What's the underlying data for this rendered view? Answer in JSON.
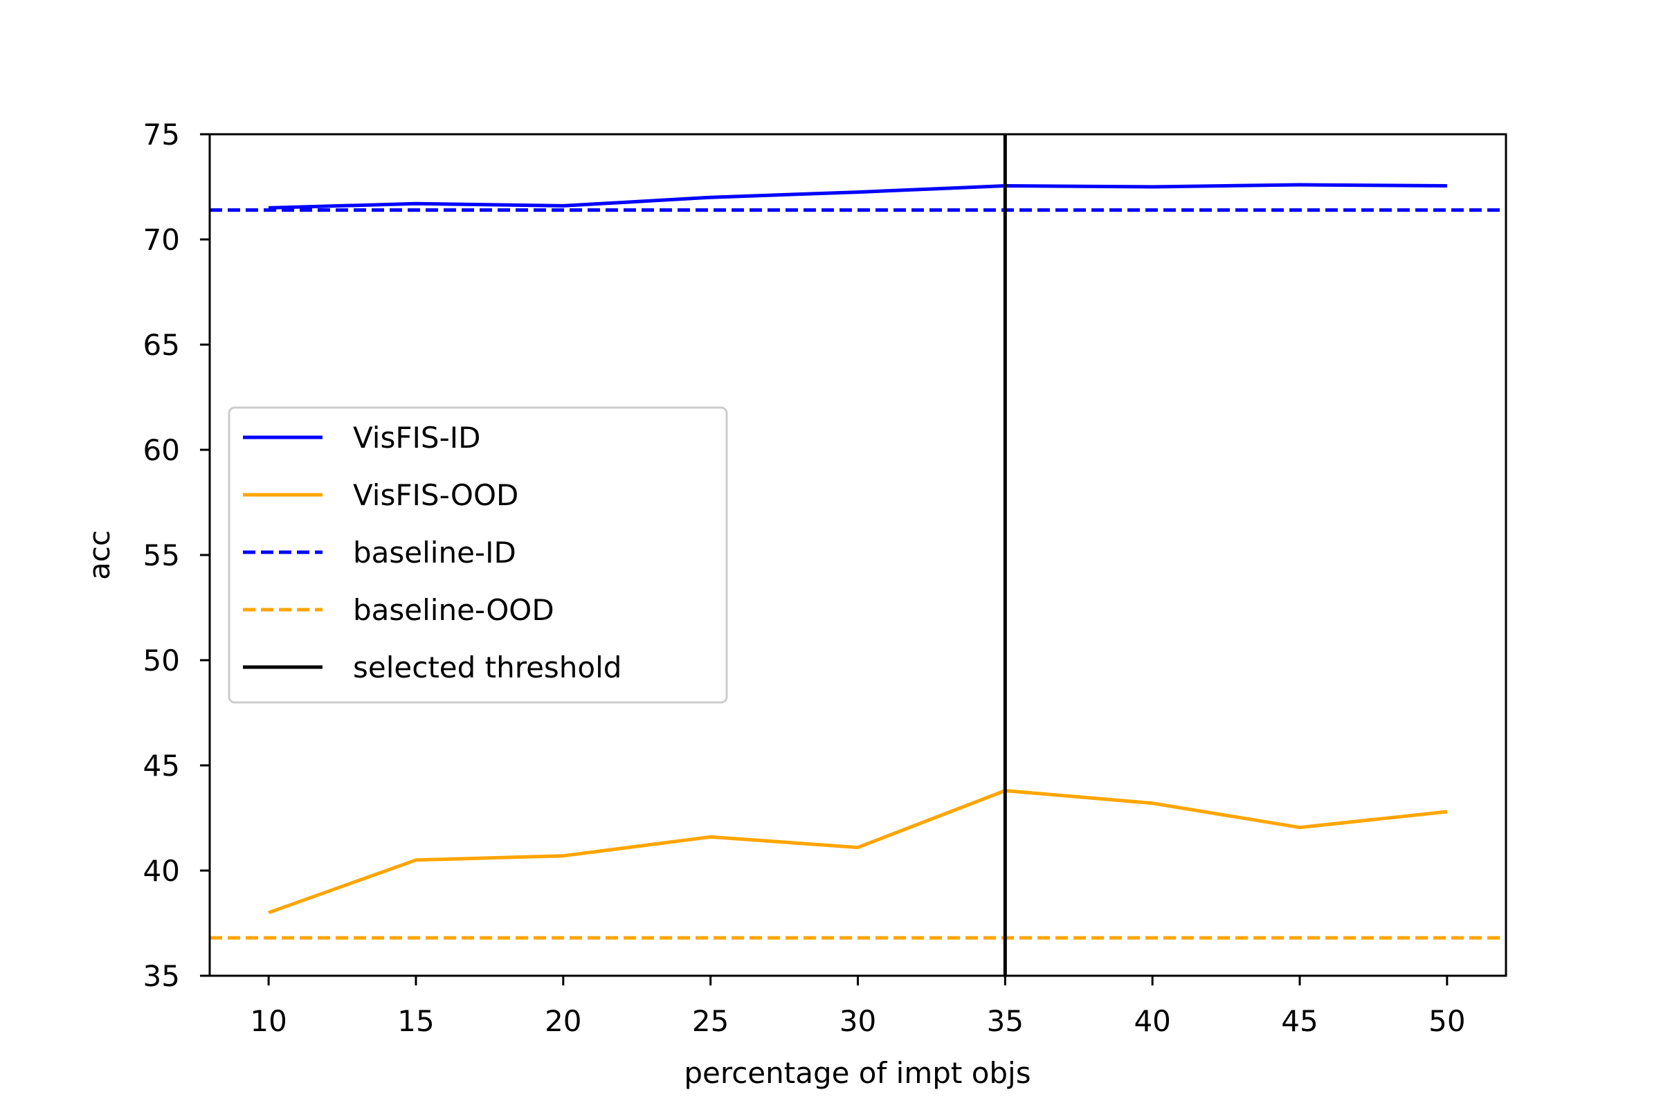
{
  "chart_data": {
    "type": "line",
    "title": "",
    "xlabel": "percentage of impt objs",
    "ylabel": "acc",
    "xlim": [
      8,
      52
    ],
    "ylim": [
      35,
      75
    ],
    "x": [
      10,
      15,
      20,
      25,
      30,
      35,
      40,
      45,
      50
    ],
    "xticks": [
      "10",
      "15",
      "20",
      "25",
      "30",
      "35",
      "40",
      "45",
      "50"
    ],
    "yticks": [
      "35",
      "40",
      "45",
      "50",
      "55",
      "60",
      "65",
      "70",
      "75"
    ],
    "grid": false,
    "legend_position": "center-left",
    "series": [
      {
        "name": "VisFIS-ID",
        "color": "#0000ff",
        "style": "solid",
        "values": [
          71.5,
          71.7,
          71.6,
          72.0,
          72.25,
          72.55,
          72.5,
          72.6,
          72.55
        ]
      },
      {
        "name": "VisFIS-OOD",
        "color": "#ffa500",
        "style": "solid",
        "values": [
          38.0,
          40.5,
          40.7,
          41.6,
          41.1,
          43.8,
          43.2,
          42.05,
          42.8
        ]
      },
      {
        "name": "baseline-ID",
        "color": "#0000ff",
        "style": "dashed",
        "constant": 71.4
      },
      {
        "name": "baseline-OOD",
        "color": "#ffa500",
        "style": "dashed",
        "constant": 36.8
      },
      {
        "name": "selected threshold",
        "color": "#000000",
        "style": "solid",
        "vertical_x": 35
      }
    ]
  }
}
